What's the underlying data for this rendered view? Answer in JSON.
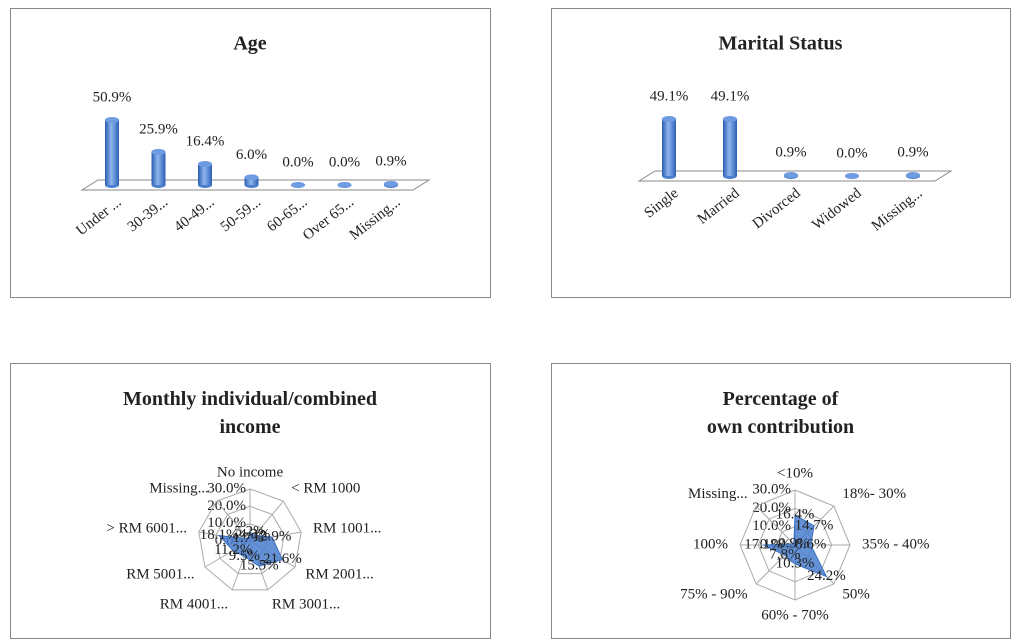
{
  "chart_data": [
    {
      "type": "bar",
      "title": "Age",
      "categories": [
        "Under ...",
        "30-39...",
        "40-49...",
        "50-59...",
        "60-65...",
        "Over 65...",
        "Missing..."
      ],
      "values": [
        50.9,
        25.9,
        16.4,
        6.0,
        0.0,
        0.0,
        0.9
      ],
      "value_labels": [
        "50.9%",
        "25.9%",
        "16.4%",
        "6.0%",
        "0.0%",
        "0.0%",
        "0.9%"
      ],
      "color": "#4a7fd0"
    },
    {
      "type": "bar",
      "title": "Marital Status",
      "categories": [
        "Single",
        "Married",
        "Divorced",
        "Widowed",
        "Missing..."
      ],
      "values": [
        49.1,
        49.1,
        0.9,
        0.0,
        0.9
      ],
      "value_labels": [
        "49.1%",
        "49.1%",
        "0.9%",
        "0.0%",
        "0.9%"
      ],
      "color": "#4a7fd0"
    },
    {
      "type": "radar",
      "title": "Monthly individual/combined income",
      "categories": [
        "No income",
        "< RM 1000",
        "RM 1001...",
        "RM 2001...",
        "RM 3001...",
        "RM 4001...",
        "RM 5001...",
        "> RM 6001...",
        "Missing..."
      ],
      "values": [
        5.2,
        4.3,
        12.9,
        21.6,
        15.5,
        9.5,
        11.2,
        18.1,
        1.7
      ],
      "value_labels": [
        "5.2%",
        "4.3%",
        "12.9%",
        "21.6%",
        "15.5%",
        "9.5%",
        "11.2%",
        "18.1%",
        "1.7%"
      ],
      "rlim": [
        0,
        30
      ],
      "rticks": [
        {
          "value": 0,
          "label": "0.0%"
        },
        {
          "value": 10,
          "label": "10.0%"
        },
        {
          "value": 20,
          "label": "20.0%"
        },
        {
          "value": 30,
          "label": "30.0%"
        }
      ],
      "color": "#4a7fd0"
    },
    {
      "type": "radar",
      "title": "Percentage of own contribution",
      "categories": [
        "<10%",
        "18%- 30%",
        "35% - 40%",
        "50%",
        "60% - 70%",
        "75% - 90%",
        "100%",
        "Missing..."
      ],
      "values": [
        16.4,
        14.7,
        8.6,
        24.2,
        10.3,
        7.8,
        17.1,
        0.9
      ],
      "value_labels": [
        "16.4%",
        "14.7%",
        "8.6%",
        "24.2%",
        "10.3%",
        "7.8%",
        "17.1%",
        "0.9%"
      ],
      "rlim": [
        0,
        30
      ],
      "rticks": [
        {
          "value": 0,
          "label": "0.0%"
        },
        {
          "value": 10,
          "label": "10.0%"
        },
        {
          "value": 20,
          "label": "20.0%"
        },
        {
          "value": 30,
          "label": "30.0%"
        }
      ],
      "color": "#4a7fd0"
    }
  ]
}
